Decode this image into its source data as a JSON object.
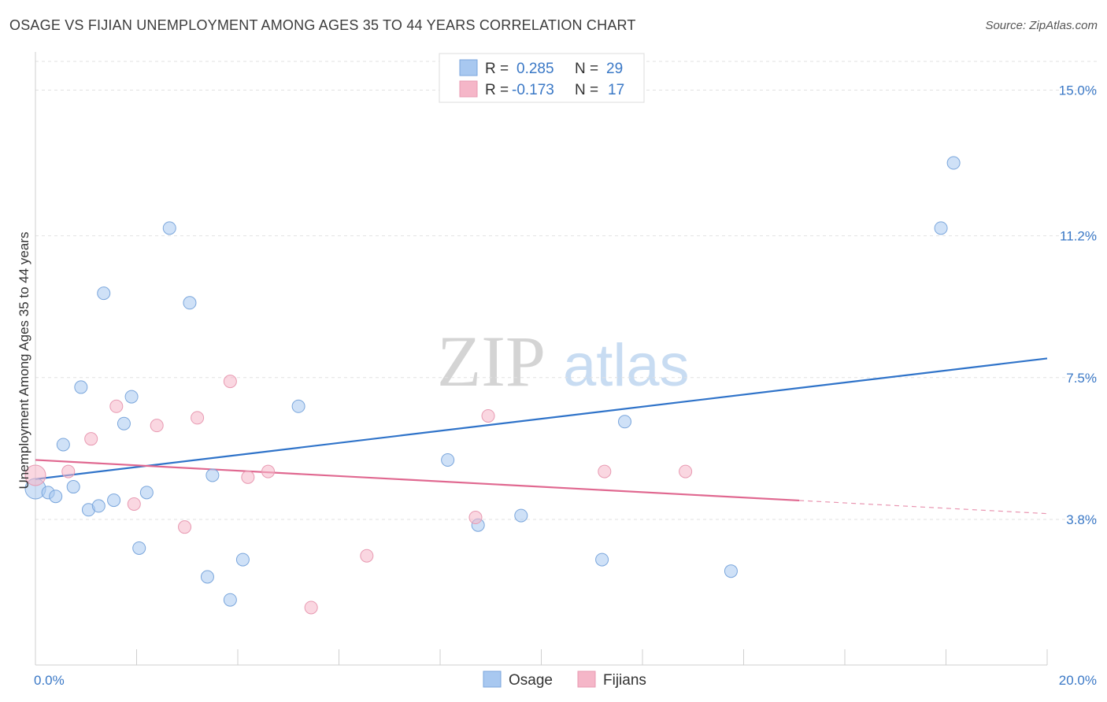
{
  "title": "OSAGE VS FIJIAN UNEMPLOYMENT AMONG AGES 35 TO 44 YEARS CORRELATION CHART",
  "source": "Source: ZipAtlas.com",
  "watermark": {
    "zip": "ZIP",
    "atlas": "atlas"
  },
  "legend": {
    "r_label": "R =",
    "n_label": "N =",
    "rows": [
      {
        "r": "0.285",
        "n": "29",
        "color": "#a8c8f0"
      },
      {
        "r": "-0.173",
        "n": "17",
        "color": "#f5b6c8"
      }
    ]
  },
  "chart_data": {
    "type": "scatter",
    "title": "OSAGE VS FIJIAN UNEMPLOYMENT AMONG AGES 35 TO 44 YEARS CORRELATION CHART",
    "xlabel": "",
    "ylabel": "Unemployment Among Ages 35 to 44 years",
    "xlim": [
      0,
      20
    ],
    "ylim": [
      0,
      15.75
    ],
    "x_tick_labels": [
      "0.0%",
      "20.0%"
    ],
    "y_ticks": [
      3.8,
      7.5,
      11.2,
      15.0
    ],
    "y_tick_labels": [
      "3.8%",
      "7.5%",
      "11.2%",
      "15.0%"
    ],
    "series": [
      {
        "name": "Osage",
        "color": "#a8c8f0",
        "stroke": "#7aa6dc",
        "trend_color": "#2f73c9",
        "trend": {
          "x0": 0,
          "y0": 4.85,
          "x1": 20,
          "y1": 8.0,
          "solid_until": 20
        },
        "points": [
          [
            0.0,
            4.6
          ],
          [
            0.25,
            4.5
          ],
          [
            0.4,
            4.4
          ],
          [
            0.55,
            5.75
          ],
          [
            0.75,
            4.65
          ],
          [
            0.9,
            7.25
          ],
          [
            1.05,
            4.05
          ],
          [
            1.25,
            4.15
          ],
          [
            1.35,
            9.7
          ],
          [
            1.55,
            4.3
          ],
          [
            1.75,
            6.3
          ],
          [
            1.9,
            7.0
          ],
          [
            2.05,
            3.05
          ],
          [
            2.2,
            4.5
          ],
          [
            2.65,
            11.4
          ],
          [
            3.05,
            9.45
          ],
          [
            3.4,
            2.3
          ],
          [
            3.5,
            4.95
          ],
          [
            3.85,
            1.7
          ],
          [
            4.1,
            2.75
          ],
          [
            5.2,
            6.75
          ],
          [
            8.15,
            5.35
          ],
          [
            8.75,
            3.65
          ],
          [
            9.6,
            3.9
          ],
          [
            11.2,
            2.75
          ],
          [
            11.65,
            6.35
          ],
          [
            13.75,
            2.45
          ],
          [
            17.9,
            11.4
          ],
          [
            18.15,
            13.1
          ]
        ]
      },
      {
        "name": "Fijians",
        "color": "#f5b6c8",
        "stroke": "#e89ab2",
        "trend_color": "#e06890",
        "trend": {
          "x0": 0,
          "y0": 5.35,
          "x1": 20,
          "y1": 3.95,
          "solid_until": 15.1
        },
        "points": [
          [
            0.0,
            4.95
          ],
          [
            0.65,
            5.05
          ],
          [
            1.1,
            5.9
          ],
          [
            1.6,
            6.75
          ],
          [
            1.95,
            4.2
          ],
          [
            2.4,
            6.25
          ],
          [
            2.95,
            3.6
          ],
          [
            3.2,
            6.45
          ],
          [
            3.85,
            7.4
          ],
          [
            4.2,
            4.9
          ],
          [
            4.6,
            5.05
          ],
          [
            5.45,
            1.5
          ],
          [
            6.55,
            2.85
          ],
          [
            8.7,
            3.85
          ],
          [
            8.95,
            6.5
          ],
          [
            11.25,
            5.05
          ],
          [
            12.85,
            5.05
          ]
        ]
      }
    ]
  }
}
